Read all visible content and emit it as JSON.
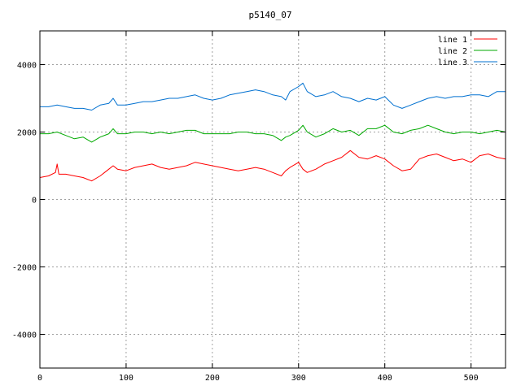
{
  "chart_data": {
    "type": "line",
    "title": "p5140_07",
    "xlabel": "",
    "ylabel": "",
    "xlim": [
      0,
      540
    ],
    "ylim": [
      -5000,
      5000
    ],
    "x_ticks": [
      0,
      100,
      200,
      300,
      400,
      500
    ],
    "y_ticks": [
      -4000,
      -2000,
      0,
      2000,
      4000
    ],
    "grid": true,
    "legend_position": "top-right",
    "series": [
      {
        "name": "line 1",
        "color": "#ff0000",
        "x": [
          0,
          10,
          18,
          20,
          22,
          30,
          40,
          50,
          55,
          60,
          70,
          80,
          85,
          90,
          100,
          110,
          120,
          130,
          140,
          150,
          160,
          170,
          180,
          190,
          200,
          210,
          220,
          230,
          240,
          250,
          260,
          270,
          280,
          285,
          290,
          300,
          305,
          310,
          320,
          330,
          340,
          350,
          360,
          370,
          380,
          390,
          400,
          410,
          420,
          430,
          440,
          450,
          460,
          470,
          480,
          490,
          500,
          510,
          520,
          530,
          540
        ],
        "y": [
          650,
          700,
          800,
          1050,
          750,
          750,
          700,
          650,
          600,
          550,
          700,
          900,
          1000,
          900,
          850,
          950,
          1000,
          1050,
          950,
          900,
          950,
          1000,
          1100,
          1050,
          1000,
          950,
          900,
          850,
          900,
          950,
          900,
          800,
          700,
          850,
          950,
          1100,
          900,
          800,
          900,
          1050,
          1150,
          1250,
          1450,
          1250,
          1200,
          1300,
          1200,
          1000,
          850,
          900,
          1200,
          1300,
          1350,
          1250,
          1150,
          1200,
          1100,
          1300,
          1350,
          1250,
          1200
        ]
      },
      {
        "name": "line 2",
        "color": "#00aa00",
        "x": [
          0,
          10,
          20,
          30,
          40,
          50,
          60,
          70,
          80,
          85,
          90,
          100,
          110,
          120,
          130,
          140,
          150,
          160,
          170,
          180,
          190,
          200,
          210,
          220,
          230,
          240,
          250,
          260,
          270,
          280,
          285,
          290,
          300,
          305,
          310,
          320,
          330,
          340,
          350,
          360,
          370,
          380,
          390,
          400,
          410,
          420,
          430,
          440,
          450,
          460,
          470,
          480,
          490,
          500,
          510,
          520,
          530,
          540
        ],
        "y": [
          1950,
          1950,
          2000,
          1900,
          1800,
          1850,
          1700,
          1850,
          1950,
          2100,
          1950,
          1950,
          2000,
          2000,
          1950,
          2000,
          1950,
          2000,
          2050,
          2050,
          1950,
          1950,
          1950,
          1950,
          2000,
          2000,
          1950,
          1950,
          1900,
          1750,
          1850,
          1900,
          2050,
          2200,
          2000,
          1850,
          1950,
          2100,
          2000,
          2050,
          1900,
          2100,
          2100,
          2200,
          2000,
          1950,
          2050,
          2100,
          2200,
          2100,
          2000,
          1950,
          2000,
          2000,
          1950,
          2000,
          2050,
          2000
        ]
      },
      {
        "name": "line 3",
        "color": "#0070d0",
        "x": [
          0,
          10,
          20,
          30,
          40,
          50,
          60,
          70,
          80,
          85,
          90,
          100,
          110,
          120,
          130,
          140,
          150,
          160,
          170,
          180,
          190,
          200,
          210,
          220,
          230,
          240,
          250,
          260,
          270,
          280,
          285,
          290,
          300,
          305,
          310,
          320,
          330,
          340,
          350,
          360,
          370,
          380,
          390,
          400,
          410,
          420,
          430,
          440,
          450,
          460,
          470,
          480,
          490,
          500,
          510,
          520,
          530,
          540
        ],
        "y": [
          2750,
          2750,
          2800,
          2750,
          2700,
          2700,
          2650,
          2800,
          2850,
          3000,
          2800,
          2800,
          2850,
          2900,
          2900,
          2950,
          3000,
          3000,
          3050,
          3100,
          3000,
          2950,
          3000,
          3100,
          3150,
          3200,
          3250,
          3200,
          3100,
          3050,
          2950,
          3200,
          3350,
          3450,
          3200,
          3050,
          3100,
          3200,
          3050,
          3000,
          2900,
          3000,
          2950,
          3050,
          2800,
          2700,
          2800,
          2900,
          3000,
          3050,
          3000,
          3050,
          3050,
          3100,
          3100,
          3050,
          3200,
          3200
        ]
      }
    ]
  }
}
